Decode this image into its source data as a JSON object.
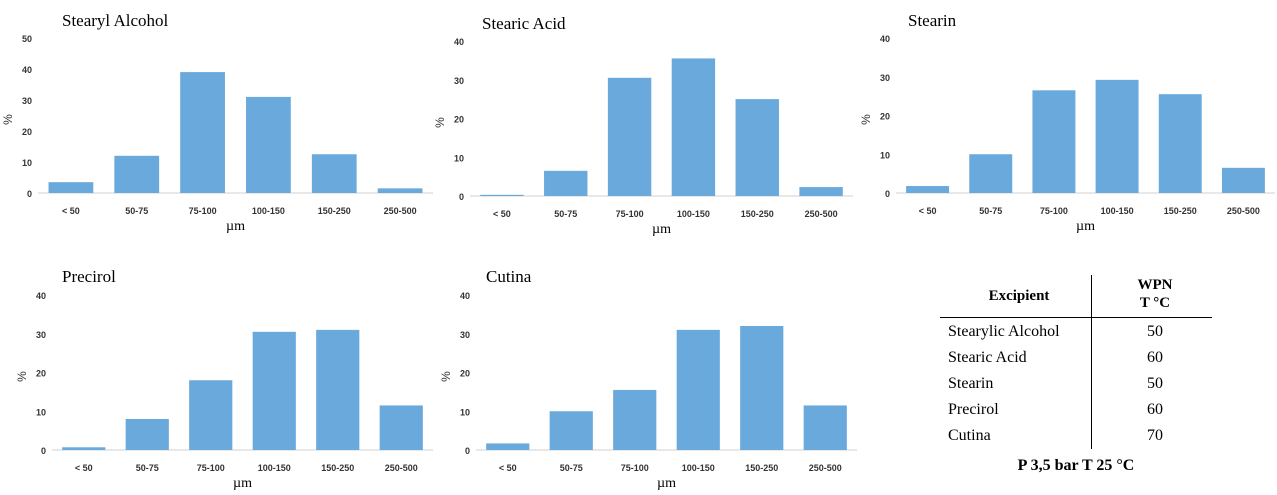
{
  "chart_data": [
    {
      "type": "bar",
      "title": "Stearyl Alcohol",
      "categories": [
        "< 50",
        "50-75",
        "75-100",
        "100-150",
        "150-250",
        "250-500"
      ],
      "values": [
        3.5,
        12,
        39,
        31,
        12.5,
        1.5
      ],
      "xlabel": "µm",
      "ylabel": "%",
      "ylim": [
        0,
        50
      ],
      "yticks": [
        0,
        10,
        20,
        30,
        40,
        50
      ],
      "color": "#6aa9dc"
    },
    {
      "type": "bar",
      "title": "Stearic Acid",
      "categories": [
        "< 50",
        "50-75",
        "75-100",
        "100-150",
        "150-250",
        "250-500"
      ],
      "values": [
        0.3,
        6.5,
        30.5,
        35.5,
        25,
        2.3
      ],
      "xlabel": "µm",
      "ylabel": "%",
      "ylim": [
        0,
        40
      ],
      "yticks": [
        0,
        10,
        20,
        30,
        40
      ],
      "color": "#6aa9dc"
    },
    {
      "type": "bar",
      "title": "Stearin",
      "categories": [
        "< 50",
        "50-75",
        "75-100",
        "100-150",
        "150-250",
        "250-500"
      ],
      "values": [
        1.8,
        10,
        26.5,
        29.2,
        25.5,
        6.5
      ],
      "xlabel": "µm",
      "ylabel": "%",
      "ylim": [
        0,
        40
      ],
      "yticks": [
        0,
        10,
        20,
        30,
        40
      ],
      "color": "#6aa9dc"
    },
    {
      "type": "bar",
      "title": "Precirol",
      "categories": [
        "< 50",
        "50-75",
        "75-100",
        "100-150",
        "150-250",
        "250-500"
      ],
      "values": [
        0.7,
        8,
        18,
        30.5,
        31,
        11.5
      ],
      "xlabel": "µm",
      "ylabel": "%",
      "ylim": [
        0,
        40
      ],
      "yticks": [
        0,
        10,
        20,
        30,
        40
      ],
      "color": "#6aa9dc"
    },
    {
      "type": "bar",
      "title": "Cutina",
      "categories": [
        "< 50",
        "50-75",
        "75-100",
        "100-150",
        "150-250",
        "250-500"
      ],
      "values": [
        1.7,
        10,
        15.5,
        31,
        32,
        11.5
      ],
      "xlabel": "µm",
      "ylabel": "%",
      "ylim": [
        0,
        40
      ],
      "yticks": [
        0,
        10,
        20,
        30,
        40
      ],
      "color": "#6aa9dc"
    }
  ],
  "table": {
    "header_excipient": "Excipient",
    "header_wpn_line1": "WPN",
    "header_wpn_line2": "T °C",
    "rows": [
      {
        "name": "Stearylic Alcohol",
        "value": "50"
      },
      {
        "name": "Stearic Acid",
        "value": "60"
      },
      {
        "name": "Stearin",
        "value": "50"
      },
      {
        "name": "Precirol",
        "value": "60"
      },
      {
        "name": "Cutina",
        "value": "70"
      }
    ],
    "condition": "P 3,5 bar  T 25 °C"
  }
}
